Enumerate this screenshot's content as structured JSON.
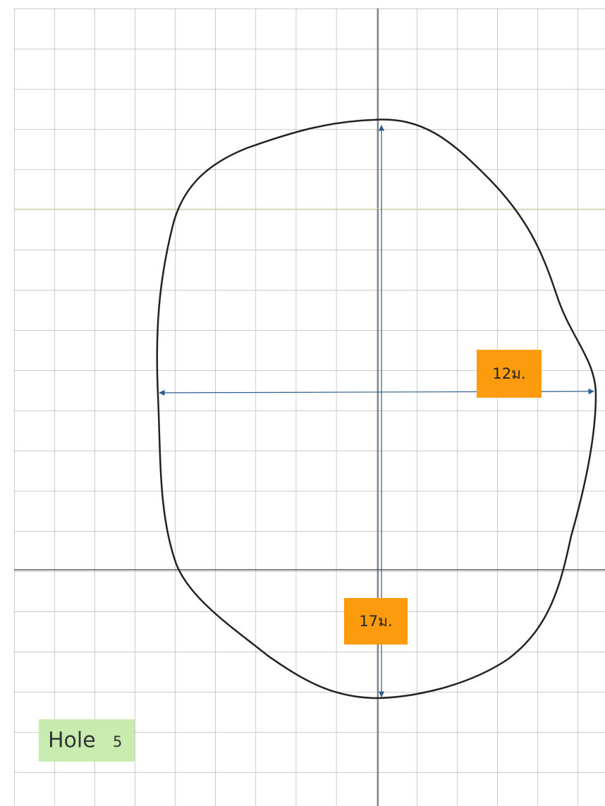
{
  "hole": {
    "name": "Hole",
    "number": "5"
  },
  "dimensions": {
    "width": "12ม.",
    "length": "17ม."
  }
}
